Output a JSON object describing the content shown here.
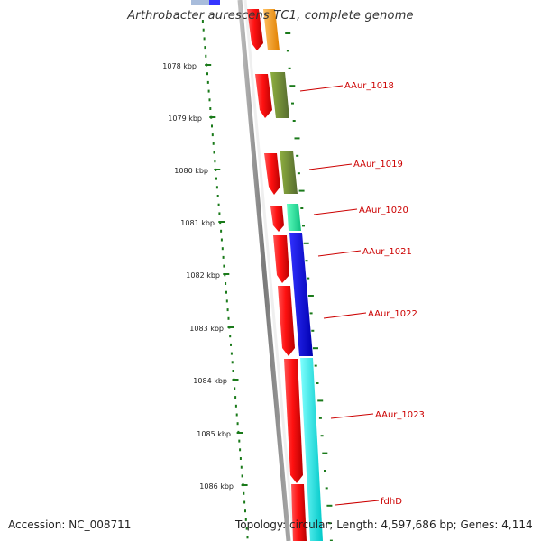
{
  "title": "Arthrobacter aurescens TC1, complete genome",
  "footer": {
    "accession": "Accession: NC_008711",
    "summary": "Topology: circular; Length: 4,597,686 bp; Genes: 4,114"
  },
  "colors": {
    "backbone": "#8a8a8a",
    "tick": "#1a7a1a",
    "label": "#cc0000",
    "cds": "#ee1111",
    "orange": "#ff9900",
    "olive": "#6b8e23",
    "mint": "#22e0a0",
    "blue": "#1010e0",
    "cyan": "#00e8e8"
  },
  "ticks": [
    {
      "label": "1078 kbp"
    },
    {
      "label": "1079 kbp"
    },
    {
      "label": "1080 kbp"
    },
    {
      "label": "1081 kbp"
    },
    {
      "label": "1082 kbp"
    },
    {
      "label": "1083 kbp"
    },
    {
      "label": "1084 kbp"
    },
    {
      "label": "1085 kbp"
    },
    {
      "label": "1086 kbp"
    }
  ],
  "gene_labels": [
    {
      "name": "AAur_1018"
    },
    {
      "name": "AAur_1019"
    },
    {
      "name": "AAur_1020"
    },
    {
      "name": "AAur_1021"
    },
    {
      "name": "AAur_1022"
    },
    {
      "name": "AAur_1023"
    },
    {
      "name": "fdhD"
    }
  ]
}
